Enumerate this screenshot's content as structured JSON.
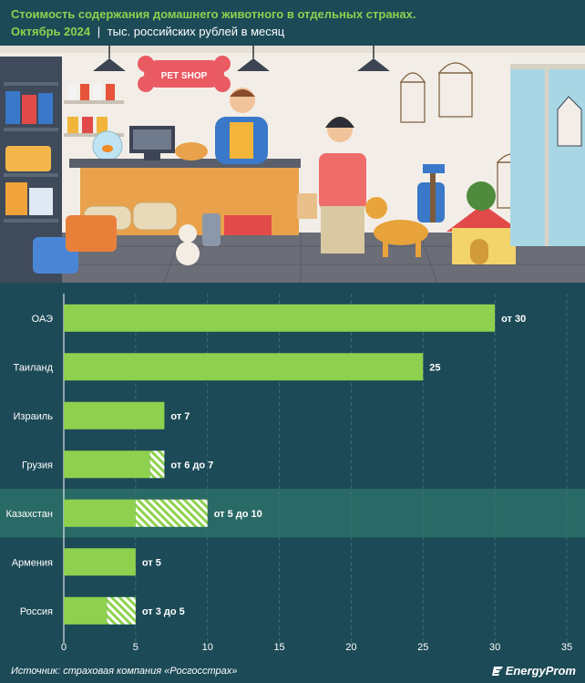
{
  "header": {
    "title": "Стоимость содержания домашнего животного в отдельных странах.",
    "date": "Октябрь 2024",
    "separator": "|",
    "unit": "тыс. российских рублей в месяц"
  },
  "illustration": {
    "sign_text": "PET SHOP"
  },
  "footer": {
    "source": "Источник: страховая компания «Росгосстрах»",
    "brand": "EnergyProm"
  },
  "colors": {
    "background": "#1c4a57",
    "bar": "#8fd14f",
    "highlight": "#2a6a66",
    "grid": "#3d6c78",
    "title_accent": "#8fd14f"
  },
  "chart_data": {
    "type": "bar",
    "orientation": "horizontal",
    "xlim": [
      0,
      35
    ],
    "ticks": [
      0,
      5,
      10,
      15,
      20,
      25,
      30,
      35
    ],
    "highlighted_category": "Казахстан",
    "categories": [
      "ОАЭ",
      "Таиланд",
      "Израиль",
      "Грузия",
      "Казахстан",
      "Армения",
      "Россия"
    ],
    "min_values": [
      30,
      25,
      7,
      6,
      5,
      5,
      3
    ],
    "max_values": [
      30,
      25,
      7,
      7,
      10,
      5,
      5
    ],
    "labels": [
      "от 30",
      "25",
      "от 7",
      "от 6 до 7",
      "от 5 до 10",
      "от 5",
      "от 3 до 5"
    ],
    "series": [
      {
        "name": "min",
        "style": "solid"
      },
      {
        "name": "range",
        "style": "hatched"
      }
    ]
  }
}
